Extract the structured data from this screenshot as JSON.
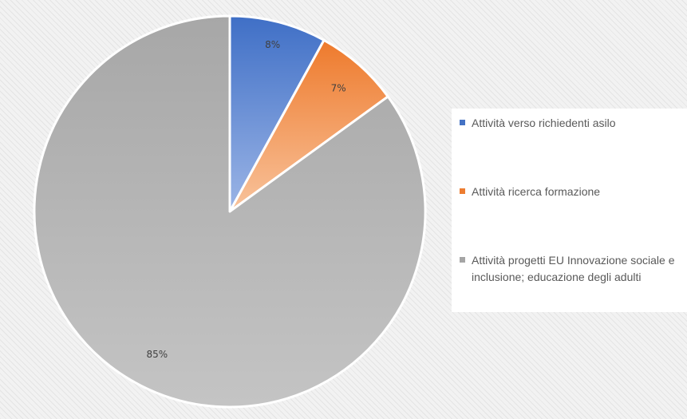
{
  "chart_data": {
    "type": "pie",
    "slices": [
      {
        "label": "Attività verso richiedenti asilo",
        "value": 8,
        "value_label": "8%",
        "color": "#4472c4"
      },
      {
        "label": "Attività ricerca formazione",
        "value": 7,
        "value_label": "7%",
        "color": "#ed7d31"
      },
      {
        "label": "Attività progetti EU Innovazione sociale e inclusione; educazione degli adulti",
        "value": 85,
        "value_label": "85%",
        "color": "#a5a5a5"
      }
    ],
    "legend_position": "right",
    "start_angle": "12 o'clock, clockwise"
  }
}
